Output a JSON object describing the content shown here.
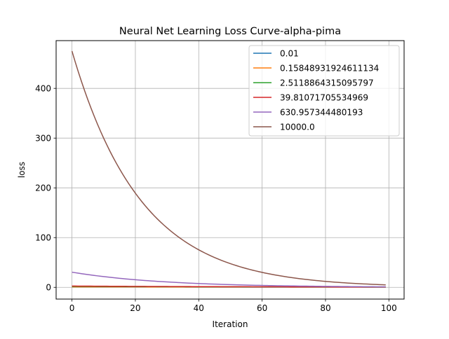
{
  "chart_data": {
    "type": "line",
    "title": "Neural Net Learning Loss Curve-alpha-pima",
    "xlabel": "Iteration",
    "ylabel": "loss",
    "xlim": [
      -5,
      104.8
    ],
    "ylim": [
      -23.6,
      496
    ],
    "xticks": [
      0,
      20,
      40,
      60,
      80,
      100
    ],
    "yticks": [
      0,
      100,
      200,
      300,
      400
    ],
    "grid": true,
    "legend_position": "top-right",
    "series": [
      {
        "name": "0.01",
        "color": "#1f77b4",
        "start": 0.7,
        "end": 0.45
      },
      {
        "name": "0.15848931924611134",
        "color": "#ff7f0e",
        "start": 0.9,
        "end": 0.5
      },
      {
        "name": "2.5118864315095797",
        "color": "#2ca02c",
        "start": 1.8,
        "end": 0.55
      },
      {
        "name": "39.81071705534969",
        "color": "#d62728",
        "start": 2.6,
        "end": 0.6
      },
      {
        "name": "630.957344480193",
        "color": "#9467bd",
        "start": 30.5,
        "end": 1.0
      },
      {
        "name": "10000.0",
        "color": "#8c564b",
        "start": 475,
        "end": 5.0
      }
    ],
    "x_start": 0,
    "x_end": 99
  }
}
